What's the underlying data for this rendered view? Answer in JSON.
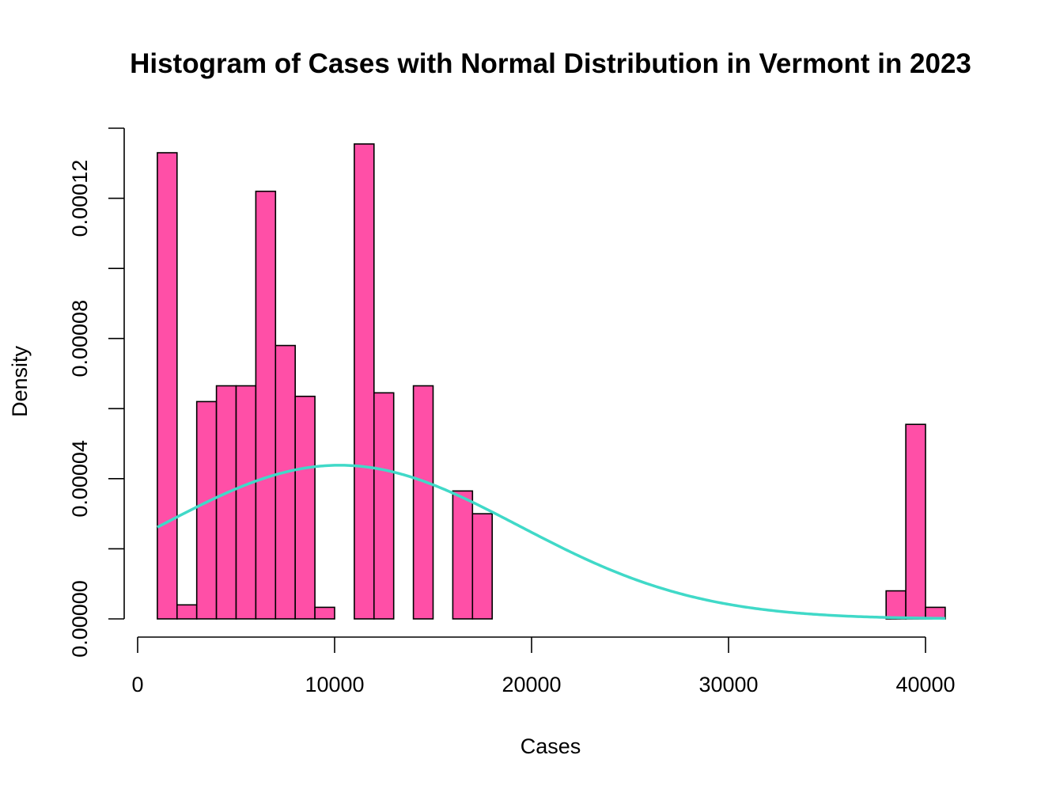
{
  "chart_data": {
    "type": "bar",
    "title": "Histogram of Cases with Normal Distribution in Vermont in 2023",
    "xlabel": "Cases",
    "ylabel": "Density",
    "xlim": [
      0,
      41000
    ],
    "ylim": [
      0,
      0.00014
    ],
    "x_ticks": [
      0,
      10000,
      20000,
      30000,
      40000
    ],
    "x_tick_labels": [
      "0",
      "10000",
      "20000",
      "30000",
      "40000"
    ],
    "y_ticks": [
      0,
      2e-05,
      4e-05,
      6e-05,
      8e-05,
      0.0001,
      0.00012,
      0.00014
    ],
    "y_tick_labels": [
      "0.00000",
      "",
      "0.00004",
      "",
      "0.00008",
      "",
      "0.00012",
      ""
    ],
    "bin_width": 1000,
    "bin_starts": [
      1000,
      2000,
      3000,
      4000,
      5000,
      6000,
      7000,
      8000,
      9000,
      10000,
      11000,
      12000,
      13000,
      14000,
      15000,
      16000,
      17000,
      18000,
      38000,
      39000,
      40000
    ],
    "density": [
      0.000133,
      4e-06,
      6.2e-05,
      6.65e-05,
      6.65e-05,
      0.000122,
      7.8e-05,
      6.35e-05,
      3.3e-06,
      0,
      0.0001355,
      6.45e-05,
      0,
      6.65e-05,
      0,
      3.65e-05,
      3e-05,
      0,
      8e-06,
      5.55e-05,
      3.3e-06
    ],
    "normal_curve": {
      "mean": 10250,
      "sd": 9100,
      "x_range": [
        1000,
        41000
      ]
    },
    "colors": {
      "bars": "#FF4FA7",
      "curve": "#40D9C8",
      "axis": "#000000"
    }
  }
}
